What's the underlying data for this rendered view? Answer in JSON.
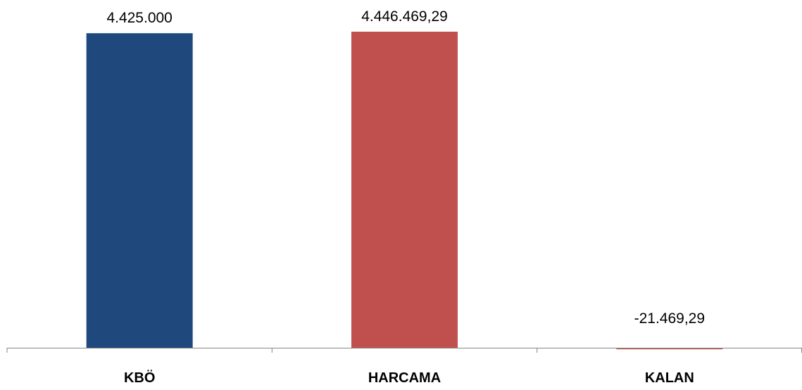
{
  "chart_data": {
    "type": "bar",
    "categories": [
      "KBÖ",
      "HARCAMA",
      "KALAN"
    ],
    "values": [
      4425000,
      4446469.29,
      -21469.29
    ],
    "data_labels": [
      "4.425.000",
      "4.446.469,29",
      "-21.469,29"
    ],
    "colors": [
      "#1F497D",
      "#C0504D",
      "#C0504D"
    ],
    "ylim": [
      -21469.29,
      4446469.29
    ],
    "grid": false,
    "legend": "none",
    "axis_color": "#868686"
  }
}
